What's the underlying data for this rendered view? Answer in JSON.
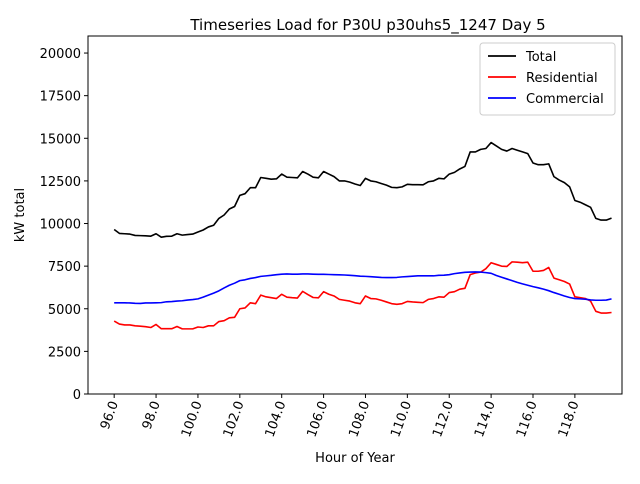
{
  "chart_data": {
    "type": "line",
    "title": "Timeseries Load for P30U p30uhs5_1247  Day 5",
    "xlabel": "Hour of Year",
    "ylabel": "kW total",
    "xlim": [
      94.75,
      120.25
    ],
    "ylim": [
      0,
      21000
    ],
    "xticks": [
      96,
      98,
      100,
      102,
      104,
      106,
      108,
      110,
      112,
      114,
      116,
      118
    ],
    "xtick_labels": [
      "96.0",
      "98.0",
      "100.0",
      "102.0",
      "104.0",
      "106.0",
      "108.0",
      "110.0",
      "112.0",
      "114.0",
      "116.0",
      "118.0"
    ],
    "yticks": [
      0,
      2500,
      5000,
      7500,
      10000,
      12500,
      15000,
      17500,
      20000
    ],
    "ytick_labels": [
      "0",
      "2500",
      "5000",
      "7500",
      "10000",
      "12500",
      "15000",
      "17500",
      "20000"
    ],
    "legend_position": "top-right",
    "x_start": 96,
    "x_step": 0.25,
    "series": [
      {
        "name": "Total",
        "color": "#000000",
        "values": [
          9650,
          9420,
          9400,
          9380,
          9300,
          9290,
          9280,
          9260,
          9400,
          9200,
          9250,
          9260,
          9400,
          9320,
          9350,
          9380,
          9500,
          9620,
          9800,
          9900,
          10300,
          10500,
          10850,
          11000,
          11650,
          11750,
          12100,
          12100,
          12700,
          12650,
          12600,
          12620,
          12900,
          12720,
          12700,
          12680,
          13050,
          12900,
          12720,
          12680,
          13050,
          12900,
          12750,
          12500,
          12500,
          12430,
          12320,
          12230,
          12650,
          12500,
          12450,
          12350,
          12250,
          12120,
          12100,
          12150,
          12300,
          12280,
          12280,
          12270,
          12450,
          12500,
          12650,
          12620,
          12900,
          13000,
          13200,
          13350,
          14200,
          14200,
          14350,
          14400,
          14750,
          14550,
          14350,
          14250,
          14400,
          14300,
          14200,
          14100,
          13550,
          13450,
          13450,
          13500,
          12750,
          12550,
          12400,
          12150,
          11350,
          11250,
          11100,
          10950,
          10300,
          10200,
          10200,
          10320
        ]
      },
      {
        "name": "Residential",
        "color": "#ff0000",
        "values": [
          4280,
          4100,
          4050,
          4050,
          4000,
          3980,
          3950,
          3900,
          4080,
          3830,
          3830,
          3830,
          3960,
          3820,
          3820,
          3820,
          3930,
          3900,
          4000,
          4000,
          4250,
          4300,
          4470,
          4500,
          5000,
          5050,
          5350,
          5300,
          5800,
          5700,
          5650,
          5600,
          5850,
          5680,
          5650,
          5630,
          6020,
          5830,
          5660,
          5640,
          6000,
          5850,
          5750,
          5550,
          5500,
          5450,
          5350,
          5300,
          5750,
          5600,
          5580,
          5500,
          5400,
          5300,
          5260,
          5300,
          5430,
          5400,
          5380,
          5360,
          5550,
          5600,
          5700,
          5680,
          5950,
          6000,
          6150,
          6200,
          7000,
          7100,
          7150,
          7350,
          7700,
          7600,
          7500,
          7480,
          7750,
          7730,
          7700,
          7730,
          7200,
          7200,
          7250,
          7420,
          6800,
          6700,
          6600,
          6450,
          5700,
          5650,
          5600,
          5450,
          4850,
          4750,
          4750,
          4780
        ]
      },
      {
        "name": "Commercial",
        "color": "#0000ff",
        "values": [
          5350,
          5350,
          5350,
          5340,
          5320,
          5310,
          5340,
          5340,
          5350,
          5360,
          5410,
          5420,
          5450,
          5470,
          5510,
          5540,
          5580,
          5680,
          5800,
          5920,
          6050,
          6220,
          6380,
          6500,
          6650,
          6700,
          6780,
          6830,
          6900,
          6930,
          6960,
          7000,
          7030,
          7040,
          7030,
          7030,
          7040,
          7040,
          7030,
          7020,
          7020,
          7010,
          7000,
          6990,
          6980,
          6960,
          6940,
          6910,
          6900,
          6880,
          6860,
          6840,
          6830,
          6830,
          6840,
          6870,
          6890,
          6910,
          6930,
          6930,
          6930,
          6930,
          6960,
          6970,
          7000,
          7060,
          7100,
          7140,
          7150,
          7160,
          7150,
          7120,
          7080,
          6950,
          6850,
          6750,
          6650,
          6550,
          6460,
          6380,
          6300,
          6230,
          6150,
          6060,
          5950,
          5850,
          5750,
          5660,
          5600,
          5580,
          5560,
          5520,
          5500,
          5500,
          5510,
          5580
        ]
      }
    ]
  }
}
